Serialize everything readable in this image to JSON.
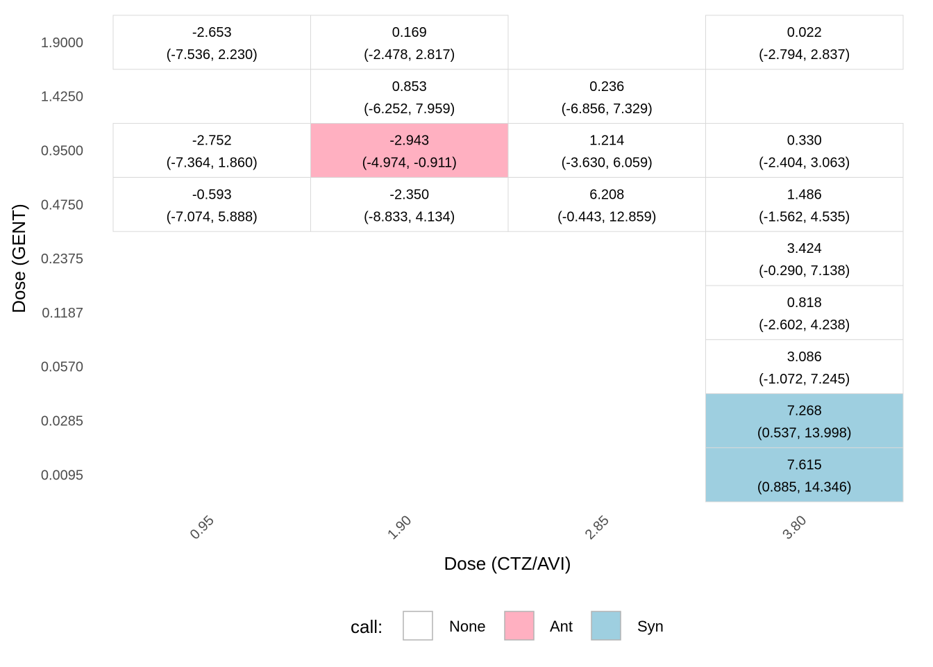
{
  "chart_data": {
    "type": "heatmap",
    "xlabel": "Dose (CTZ/AVI)",
    "ylabel": "Dose (GENT)",
    "x_categories": [
      "0.95",
      "1.90",
      "2.85",
      "3.80"
    ],
    "y_categories": [
      "1.9000",
      "1.4250",
      "0.9500",
      "0.4750",
      "0.2375",
      "0.1187",
      "0.0570",
      "0.0285",
      "0.0095"
    ],
    "cells": [
      {
        "x": "0.95",
        "y": "1.9000",
        "value": "-2.653",
        "ci": "(-7.536, 2.230)",
        "call": "None"
      },
      {
        "x": "1.90",
        "y": "1.9000",
        "value": "0.169",
        "ci": "(-2.478, 2.817)",
        "call": "None"
      },
      {
        "x": "3.80",
        "y": "1.9000",
        "value": "0.022",
        "ci": "(-2.794, 2.837)",
        "call": "None"
      },
      {
        "x": "1.90",
        "y": "1.4250",
        "value": "0.853",
        "ci": "(-6.252, 7.959)",
        "call": "None"
      },
      {
        "x": "2.85",
        "y": "1.4250",
        "value": "0.236",
        "ci": "(-6.856, 7.329)",
        "call": "None"
      },
      {
        "x": "0.95",
        "y": "0.9500",
        "value": "-2.752",
        "ci": "(-7.364, 1.860)",
        "call": "None"
      },
      {
        "x": "1.90",
        "y": "0.9500",
        "value": "-2.943",
        "ci": "(-4.974, -0.911)",
        "call": "Ant"
      },
      {
        "x": "2.85",
        "y": "0.9500",
        "value": "1.214",
        "ci": "(-3.630, 6.059)",
        "call": "None"
      },
      {
        "x": "3.80",
        "y": "0.9500",
        "value": "0.330",
        "ci": "(-2.404, 3.063)",
        "call": "None"
      },
      {
        "x": "0.95",
        "y": "0.4750",
        "value": "-0.593",
        "ci": "(-7.074, 5.888)",
        "call": "None"
      },
      {
        "x": "1.90",
        "y": "0.4750",
        "value": "-2.350",
        "ci": "(-8.833, 4.134)",
        "call": "None"
      },
      {
        "x": "2.85",
        "y": "0.4750",
        "value": "6.208",
        "ci": "(-0.443, 12.859)",
        "call": "None"
      },
      {
        "x": "3.80",
        "y": "0.4750",
        "value": "1.486",
        "ci": "(-1.562, 4.535)",
        "call": "None"
      },
      {
        "x": "3.80",
        "y": "0.2375",
        "value": "3.424",
        "ci": "(-0.290, 7.138)",
        "call": "None"
      },
      {
        "x": "3.80",
        "y": "0.1187",
        "value": "0.818",
        "ci": "(-2.602, 4.238)",
        "call": "None"
      },
      {
        "x": "3.80",
        "y": "0.0570",
        "value": "3.086",
        "ci": "(-1.072, 7.245)",
        "call": "None"
      },
      {
        "x": "3.80",
        "y": "0.0285",
        "value": "7.268",
        "ci": "(0.537, 13.998)",
        "call": "Syn"
      },
      {
        "x": "3.80",
        "y": "0.0095",
        "value": "7.615",
        "ci": "(0.885, 14.346)",
        "call": "Syn"
      }
    ],
    "legend": {
      "title": "call:",
      "position": "bottom",
      "entries": [
        {
          "label": "None",
          "color": "#ffffff"
        },
        {
          "label": "Ant",
          "color": "#ffb0c1"
        },
        {
          "label": "Syn",
          "color": "#9ecfe0"
        }
      ]
    },
    "grid": false
  }
}
